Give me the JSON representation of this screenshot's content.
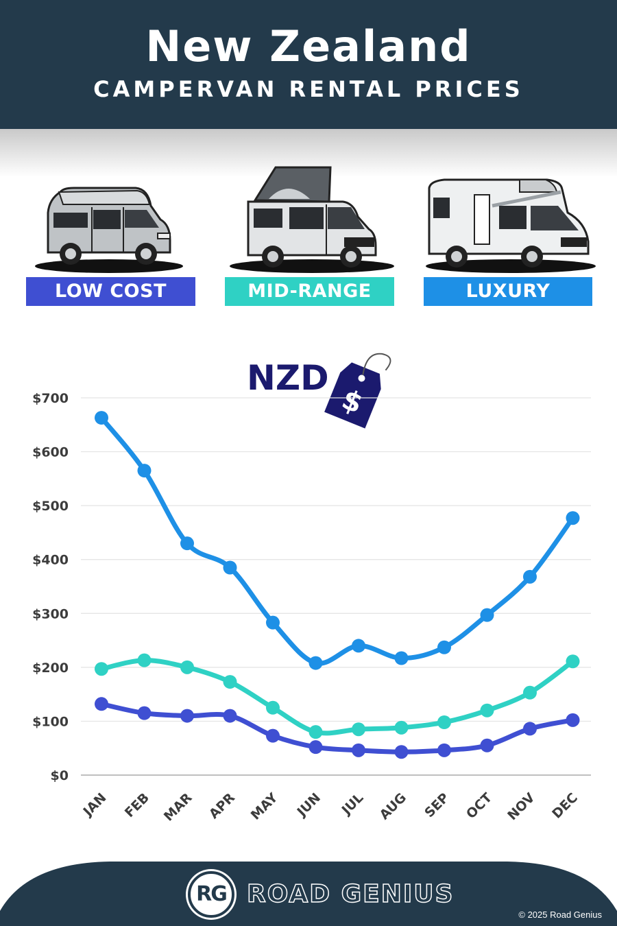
{
  "header": {
    "title": "New Zealand",
    "subtitle": "CAMPERVAN RENTAL PRICES"
  },
  "vans": [
    {
      "label": "LOW COST",
      "color": "#3f4fd2"
    },
    {
      "label": "MID-RANGE",
      "color": "#2fd1c4"
    },
    {
      "label": "LUXURY",
      "color": "#1e90e6"
    }
  ],
  "tag": {
    "currency": "NZD",
    "symbol": "$"
  },
  "chart_data": {
    "type": "line",
    "categories": [
      "JAN",
      "FEB",
      "MAR",
      "APR",
      "MAY",
      "JUN",
      "JUL",
      "AUG",
      "SEP",
      "OCT",
      "NOV",
      "DEC"
    ],
    "yticks": [
      "$0",
      "$100",
      "$200",
      "$300",
      "$400",
      "$500",
      "$600",
      "$700"
    ],
    "ylim": [
      0,
      700
    ],
    "grid": true,
    "series": [
      {
        "name": "LUXURY",
        "color": "#1e90e6",
        "values": [
          663,
          565,
          430,
          385,
          283,
          208,
          240,
          217,
          237,
          297,
          368,
          477
        ]
      },
      {
        "name": "MID-RANGE",
        "color": "#2fd1c4",
        "values": [
          197,
          213,
          200,
          173,
          125,
          80,
          85,
          88,
          98,
          120,
          153,
          211
        ]
      },
      {
        "name": "LOW COST",
        "color": "#3f4fd2",
        "values": [
          132,
          115,
          110,
          110,
          73,
          52,
          46,
          43,
          46,
          55,
          86,
          102
        ]
      }
    ]
  },
  "footer": {
    "logo": "RG",
    "brand": "ROAD GENIUS",
    "copyright": "© 2025 Road Genius"
  }
}
